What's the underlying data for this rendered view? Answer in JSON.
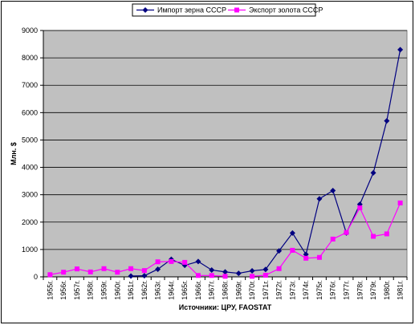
{
  "chart_data": {
    "type": "line",
    "xlabel": "Источники: ЦРУ, FAOSTAT",
    "ylabel": "Млн. $",
    "ylim": [
      0,
      9000
    ],
    "yticks": [
      0,
      1000,
      2000,
      3000,
      4000,
      5000,
      6000,
      7000,
      8000,
      9000
    ],
    "grid": true,
    "legend_position": "top",
    "plot_background": "#c0c0c0",
    "categories": [
      "1955г.",
      "1956г.",
      "1957г.",
      "1958г.",
      "1959г.",
      "1960г.",
      "1961г.",
      "1962г.",
      "1963г.",
      "1964г.",
      "1965г.",
      "1966г.",
      "1967г.",
      "1968г.",
      "1969г.",
      "1970г.",
      "1971г.",
      "1972г.",
      "1973г.",
      "1974г.",
      "1975г.",
      "1976г.",
      "1977г.",
      "1978г.",
      "1979г.",
      "1980г.",
      "1981г."
    ],
    "series": [
      {
        "name": "Импорт зерна СССР",
        "color": "#000080",
        "marker": "diamond",
        "values": [
          null,
          null,
          null,
          null,
          null,
          null,
          30,
          40,
          280,
          640,
          420,
          560,
          250,
          180,
          130,
          220,
          270,
          950,
          1600,
          820,
          2850,
          3150,
          1600,
          2650,
          3800,
          5700,
          8300
        ]
      },
      {
        "name": "Экспорт золота СССР",
        "color": "#ff00ff",
        "marker": "square",
        "values": [
          80,
          170,
          290,
          180,
          300,
          170,
          300,
          230,
          550,
          560,
          530,
          50,
          50,
          20,
          null,
          20,
          60,
          300,
          970,
          680,
          710,
          1380,
          1620,
          2520,
          1480,
          1570,
          2700
        ]
      }
    ]
  }
}
